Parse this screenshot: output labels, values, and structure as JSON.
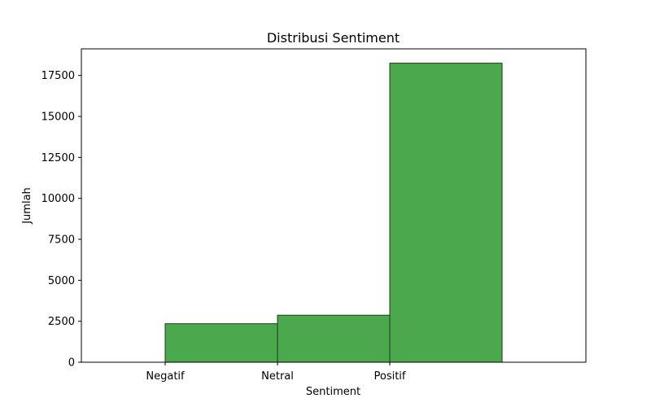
{
  "chart_data": {
    "type": "bar",
    "title": "Distribusi Sentiment",
    "xlabel": "Sentiment",
    "ylabel": "Jumlah",
    "categories": [
      "Negatif",
      "Netral",
      "Positif"
    ],
    "values": [
      2350,
      2870,
      18250
    ],
    "ylim": [
      0,
      19124
    ],
    "yticks": [
      0,
      2500,
      5000,
      7500,
      10000,
      12500,
      15000,
      17500
    ],
    "ytick_labels": [
      "0",
      "2500",
      "5000",
      "7500",
      "10000",
      "12500",
      "15000",
      "17500"
    ],
    "grid": false,
    "legend": "none",
    "colors": {
      "bar_fill": "#4ca84c",
      "bar_edge": "#1e3a1e",
      "axis": "#000000",
      "background": "#ffffff"
    }
  }
}
